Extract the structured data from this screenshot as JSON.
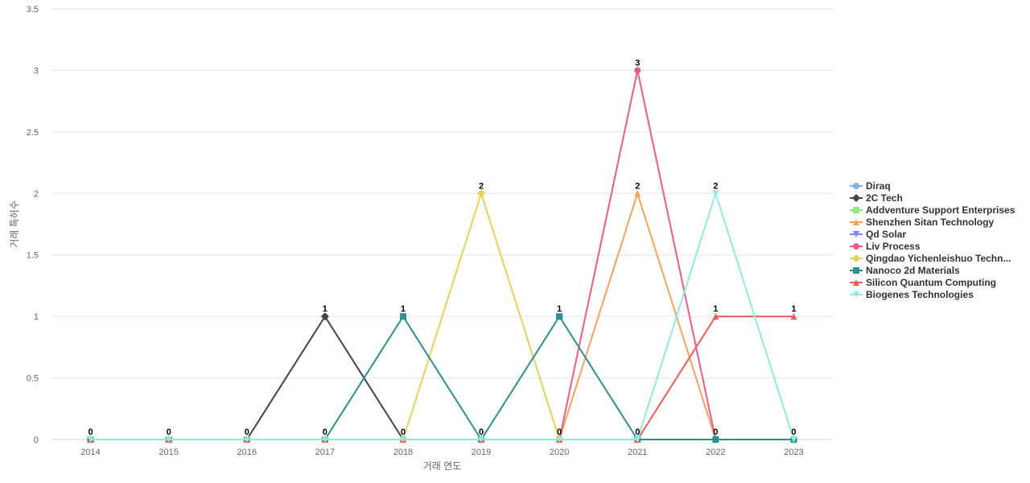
{
  "chart_data": {
    "type": "line",
    "x": [
      "2014",
      "2015",
      "2016",
      "2017",
      "2018",
      "2019",
      "2020",
      "2021",
      "2022",
      "2023"
    ],
    "xlabel": "거래 연도",
    "ylabel": "거래 특허수",
    "ylim": [
      0,
      3.5
    ],
    "yticks": [
      "0",
      "0.5",
      "1",
      "1.5",
      "2",
      "2.5",
      "3",
      "3.5"
    ],
    "grid": true,
    "legend_position": "right",
    "series": [
      {
        "name": "Diraq",
        "color": "#7cb5ec",
        "marker": "circle",
        "values": [
          0,
          0,
          0,
          0,
          0,
          0,
          0,
          0,
          0,
          0
        ]
      },
      {
        "name": "2C Tech",
        "color": "#434348",
        "marker": "diamond",
        "values": [
          0,
          0,
          0,
          1,
          0,
          0,
          0,
          0,
          0,
          0
        ]
      },
      {
        "name": "Addventure Support Enterprises",
        "color": "#90ed7d",
        "marker": "square",
        "values": [
          0,
          0,
          0,
          0,
          0,
          0,
          0,
          0,
          0,
          0
        ]
      },
      {
        "name": "Shenzhen Sitan Technology",
        "color": "#f7a35c",
        "marker": "triangle",
        "values": [
          0,
          0,
          0,
          0,
          0,
          0,
          0,
          2,
          0,
          0
        ]
      },
      {
        "name": "Qd Solar",
        "color": "#8085e9",
        "marker": "triangle-down",
        "values": [
          0,
          0,
          0,
          0,
          0,
          0,
          0,
          0,
          0,
          0
        ]
      },
      {
        "name": "Liv Process",
        "color": "#f15c80",
        "marker": "circle",
        "values": [
          0,
          0,
          0,
          0,
          0,
          0,
          0,
          3,
          0,
          0
        ]
      },
      {
        "name": "Qingdao Yichenleishuo Techn...",
        "color": "#e4d354",
        "marker": "diamond",
        "values": [
          0,
          0,
          0,
          0,
          0,
          2,
          0,
          0,
          0,
          0
        ]
      },
      {
        "name": "Nanoco 2d Materials",
        "color": "#2b908f",
        "marker": "square",
        "values": [
          0,
          0,
          0,
          0,
          1,
          0,
          1,
          0,
          0,
          0
        ]
      },
      {
        "name": "Silicon Quantum Computing",
        "color": "#f45b5b",
        "marker": "triangle",
        "values": [
          0,
          0,
          0,
          0,
          0,
          0,
          0,
          0,
          1,
          1
        ]
      },
      {
        "name": "Biogenes Technologies",
        "color": "#91e8e1",
        "marker": "triangle-down",
        "values": [
          0,
          0,
          0,
          0,
          0,
          0,
          0,
          0,
          2,
          0
        ]
      }
    ],
    "data_labels": [
      {
        "x": "2014",
        "value": 0
      },
      {
        "x": "2015",
        "value": 0
      },
      {
        "x": "2016",
        "value": 0
      },
      {
        "x": "2017",
        "value": 0
      },
      {
        "x": "2017",
        "value": 1
      },
      {
        "x": "2018",
        "value": 0
      },
      {
        "x": "2018",
        "value": 1
      },
      {
        "x": "2019",
        "value": 0
      },
      {
        "x": "2019",
        "value": 2
      },
      {
        "x": "2020",
        "value": 0
      },
      {
        "x": "2020",
        "value": 1
      },
      {
        "x": "2021",
        "value": 0
      },
      {
        "x": "2021",
        "value": 2
      },
      {
        "x": "2021",
        "value": 3
      },
      {
        "x": "2022",
        "value": 0
      },
      {
        "x": "2022",
        "value": 1
      },
      {
        "x": "2022",
        "value": 2
      },
      {
        "x": "2023",
        "value": 0
      },
      {
        "x": "2023",
        "value": 1
      }
    ]
  }
}
